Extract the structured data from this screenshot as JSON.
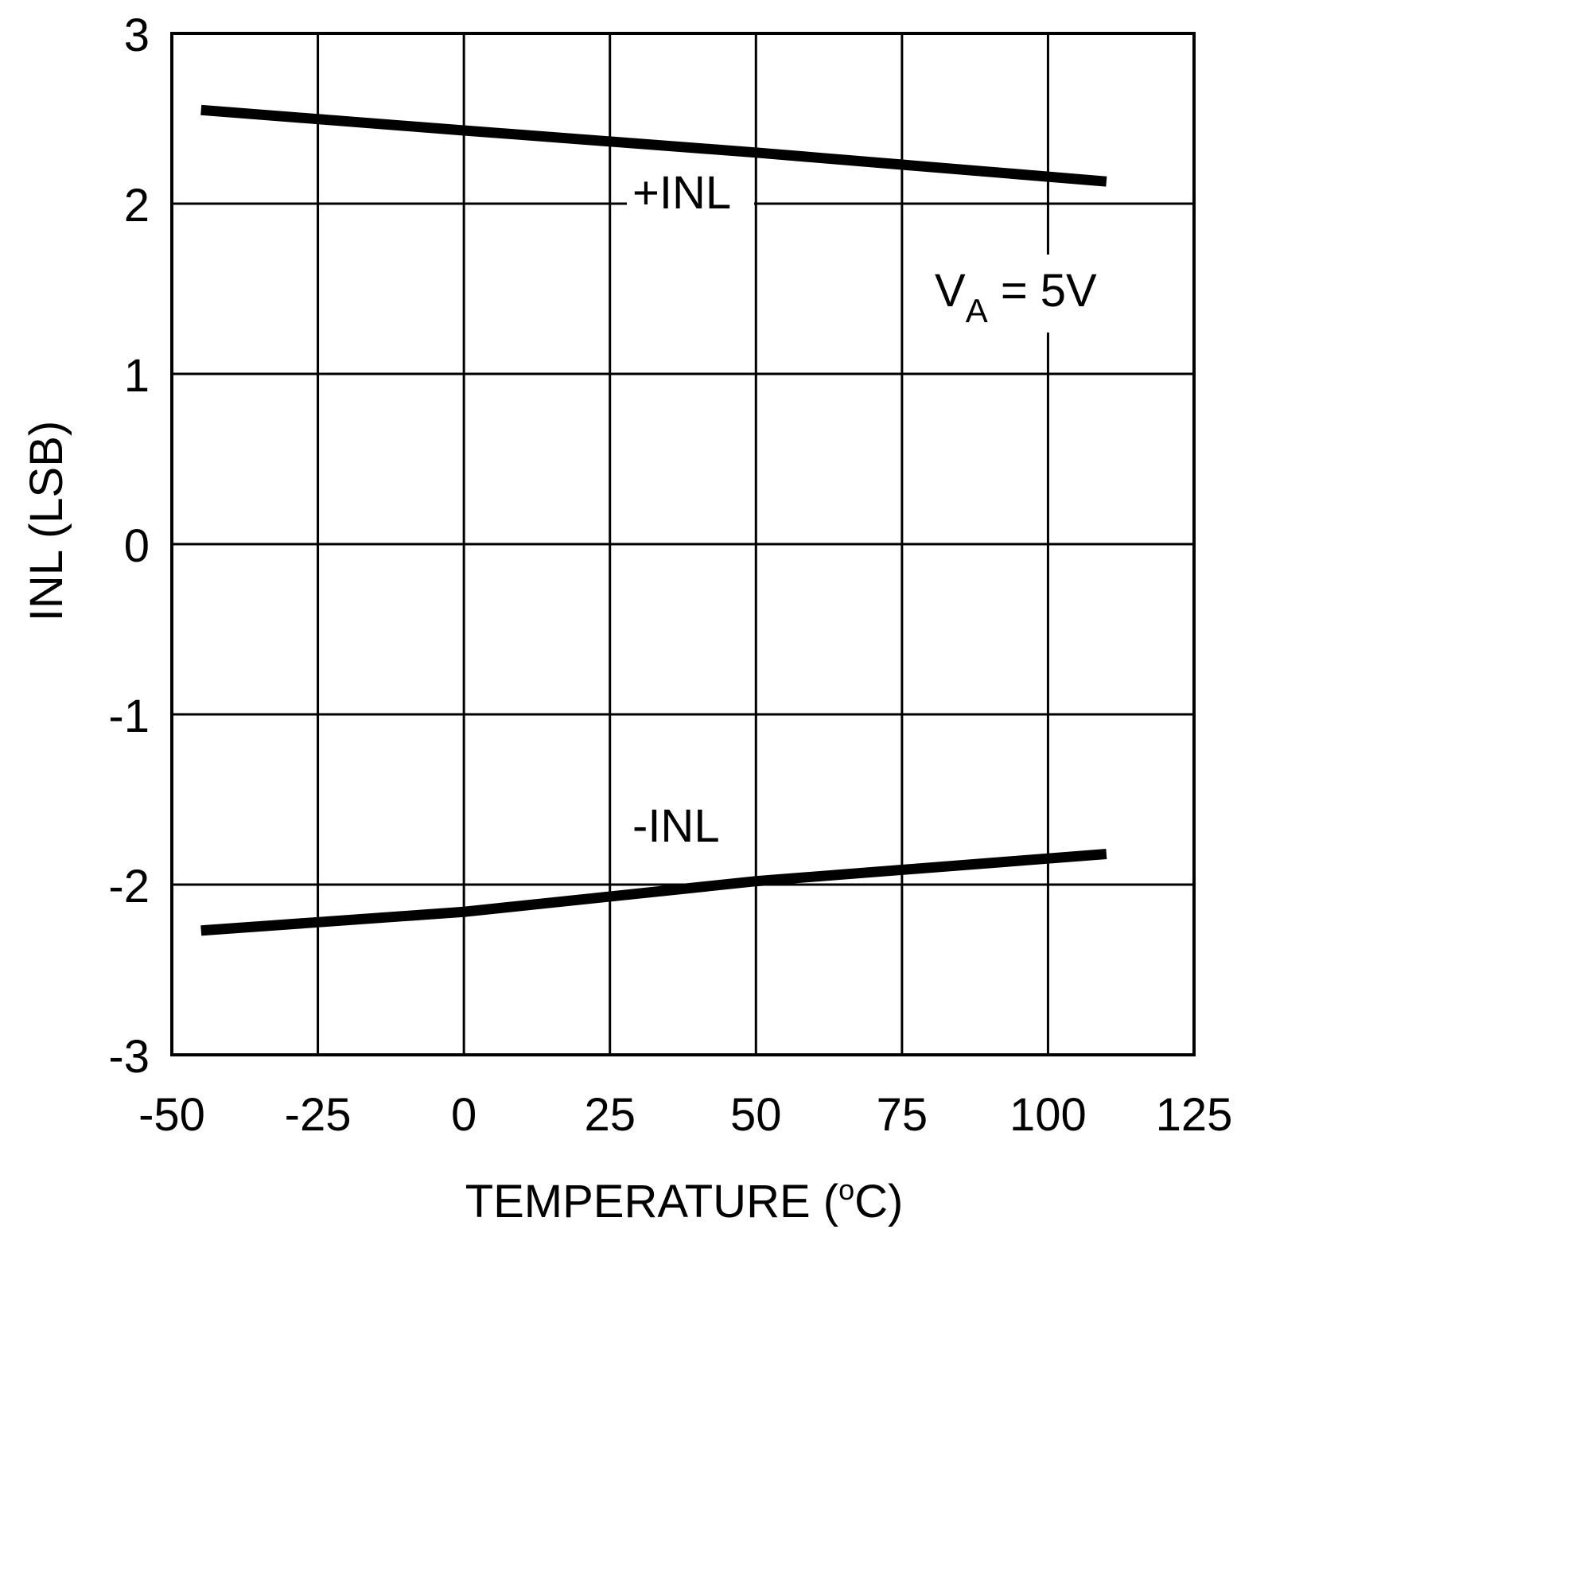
{
  "chart_data": {
    "type": "line",
    "title": "",
    "xlabel": "TEMPERATURE (",
    "xlabel_sup": "o",
    "xlabel_end": "C)",
    "ylabel": "INL (LSB)",
    "xlim": [
      -50,
      125
    ],
    "ylim": [
      -3,
      3
    ],
    "xticks": [
      -50,
      -25,
      0,
      25,
      50,
      75,
      100,
      125
    ],
    "yticks": [
      -3,
      -2,
      -1,
      0,
      1,
      2,
      3
    ],
    "grid": true,
    "series": [
      {
        "name": "+INL",
        "x": [
          -45,
          0,
          50,
          110
        ],
        "y": [
          2.55,
          2.43,
          2.3,
          2.13
        ]
      },
      {
        "name": "-INL",
        "x": [
          -45,
          0,
          50,
          110
        ],
        "y": [
          -2.27,
          -2.16,
          -1.98,
          -1.82
        ]
      }
    ],
    "annotations": {
      "condition_main": "V",
      "condition_sub": "A",
      "condition_rest": " = 5V"
    },
    "line_color": "#000000"
  }
}
